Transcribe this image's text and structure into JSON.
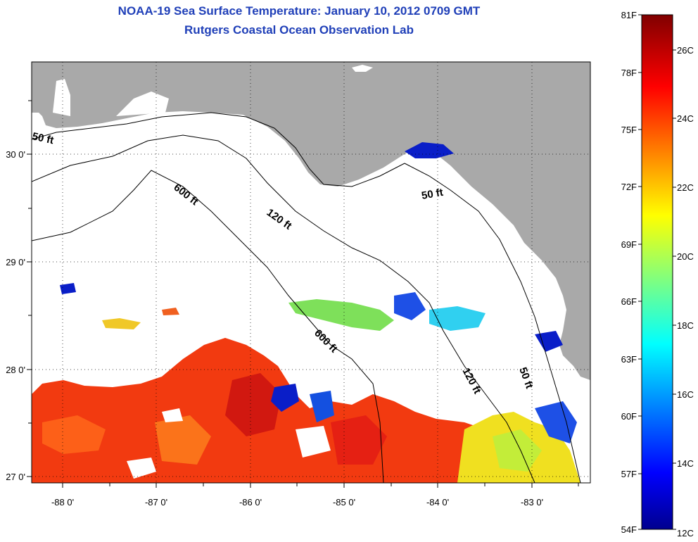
{
  "title": {
    "line1": "NOAA-19 Sea Surface Temperature:  January 10, 2012 0709 GMT",
    "line2": "Rutgers Coastal Ocean Observation Lab"
  },
  "map": {
    "lat_ticks": [
      "30 0'",
      "29 0'",
      "28 0'",
      "27 0'"
    ],
    "lon_ticks": [
      "-88 0'",
      "-87 0'",
      "-86 0'",
      "-85 0'",
      "-84 0'",
      "-83 0'"
    ],
    "contours": [
      "50 ft",
      "600 ft",
      "120 ft",
      "50 ft",
      "600 ft",
      "120 ft",
      "50 ft"
    ],
    "land_color": "#a9a9a9",
    "nodata_color": "#ffffff"
  },
  "colorbar": {
    "fahrenheit": [
      "81F",
      "78F",
      "75F",
      "72F",
      "69F",
      "66F",
      "63F",
      "60F",
      "57F",
      "54F"
    ],
    "celsius": [
      "26C",
      "24C",
      "22C",
      "20C",
      "18C",
      "16C",
      "14C",
      "12C"
    ]
  }
}
